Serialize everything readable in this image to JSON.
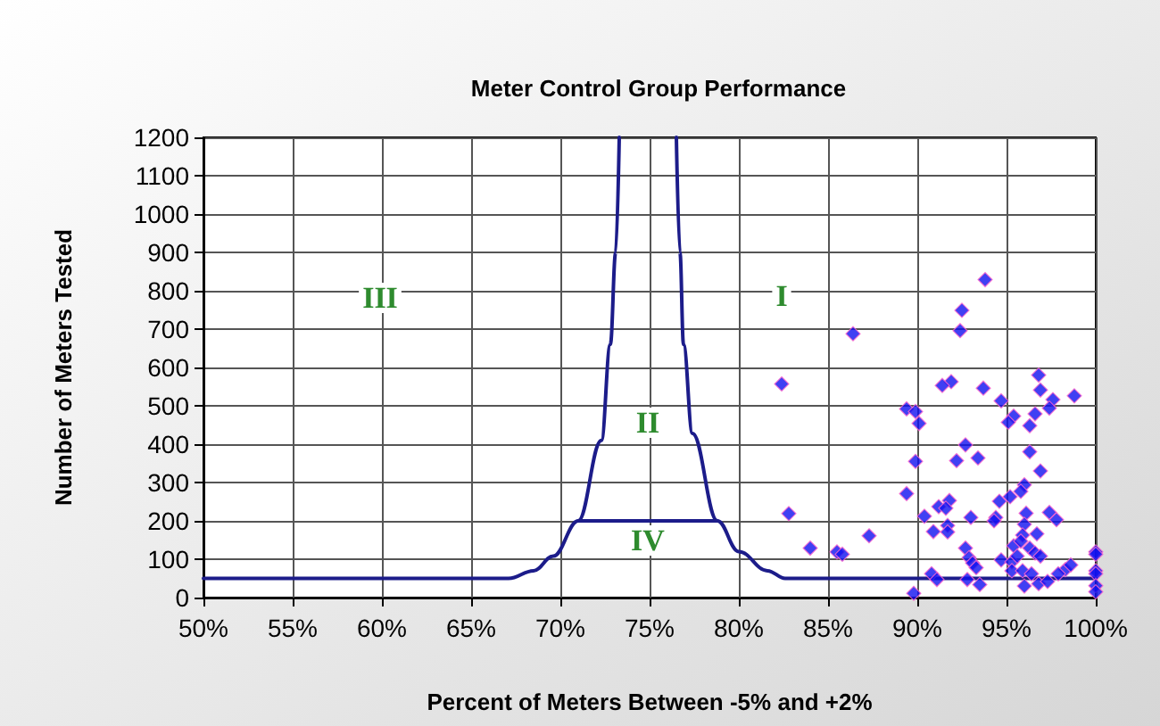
{
  "chart_data": {
    "type": "scatter",
    "title": "Meter Control Group Performance",
    "xlabel": "Percent of Meters Between -5% and +2%",
    "ylabel": "Number of Meters Tested",
    "xlim": [
      50,
      100
    ],
    "xticks": [
      {
        "value": 50,
        "label": "50%"
      },
      {
        "value": 55,
        "label": "55%"
      },
      {
        "value": 60,
        "label": "60%"
      },
      {
        "value": 65,
        "label": "65%"
      },
      {
        "value": 70,
        "label": "70%"
      },
      {
        "value": 75,
        "label": "75%"
      },
      {
        "value": 80,
        "label": "80%"
      },
      {
        "value": 85,
        "label": "85%"
      },
      {
        "value": 90,
        "label": "90%"
      },
      {
        "value": 95,
        "label": "95%"
      },
      {
        "value": 100,
        "label": "100%"
      }
    ],
    "ylim": [
      0,
      1200
    ],
    "yticks": [
      0,
      100,
      200,
      300,
      400,
      500,
      600,
      700,
      800,
      900,
      1000,
      1100,
      1200
    ],
    "grid": true,
    "annotations": [
      "I",
      "II",
      "III",
      "IV"
    ],
    "series": [
      {
        "type": "line",
        "color": "#1c1c8a",
        "marker": "none",
        "x": [
          50,
          67.1,
          68.5,
          69.6,
          71,
          72.3,
          72.8,
          73.1,
          73.3
        ],
        "values": [
          50,
          50,
          70,
          108,
          200,
          410,
          660,
          900,
          1200
        ]
      },
      {
        "type": "line",
        "color": "#1c1c8a",
        "marker": "none",
        "x": [
          76.5,
          76.7,
          76.9,
          77.4,
          78.8,
          80,
          81.6,
          82.6,
          100
        ],
        "values": [
          1200,
          900,
          660,
          428,
          200,
          120,
          70,
          50,
          50
        ]
      },
      {
        "type": "line",
        "color": "#1c1c8a",
        "marker": "none",
        "x": [
          71,
          78.8
        ],
        "values": [
          200,
          200
        ]
      },
      {
        "color": "#1010f0",
        "marker": "diamond",
        "x": [
          93.8,
          92.5,
          92.4,
          86.4,
          82.4,
          96.8,
          91.9,
          91.4,
          93.7,
          96.9,
          98.8,
          97.6,
          94.7,
          89.4,
          89.9,
          97.4,
          90.1,
          95.4,
          95.1,
          96.6,
          96.3,
          92.7,
          92.2,
          93.4,
          89.9,
          96.3,
          96.9,
          89.4,
          96,
          95.8,
          95.2,
          94.6,
          91.8,
          91.2,
          91.6,
          82.8,
          90.4,
          93,
          94.4,
          94.3,
          97.4,
          97.8,
          96.1,
          96,
          91.7,
          91.7,
          90.9,
          87.3,
          95.9,
          96.7,
          84,
          85.5,
          85.8,
          92.7,
          95.4,
          95.8,
          96.3,
          96.6,
          96.9,
          92.9,
          93.1,
          93.3,
          94.7,
          95.3,
          95.6,
          95.3,
          95.9,
          96.4,
          98.3,
          98.6,
          97.9,
          100,
          100,
          100,
          100,
          100,
          100,
          90.8,
          91.1,
          92.8,
          93.5,
          96,
          96.8,
          97.3,
          89.8
        ],
        "values": [
          829,
          749,
          696,
          688,
          557,
          580,
          563,
          553,
          546,
          541,
          526,
          516,
          513,
          492,
          485,
          494,
          454,
          473,
          457,
          479,
          448,
          398,
          357,
          364,
          355,
          380,
          330,
          271,
          294,
          277,
          263,
          251,
          253,
          237,
          233,
          219,
          212,
          209,
          209,
          200,
          222,
          203,
          220,
          191,
          188,
          171,
          172,
          161,
          163,
          166,
          129,
          119,
          113,
          129,
          135,
          147,
          129,
          116,
          108,
          104,
          90,
          78,
          98,
          93,
          108,
          70,
          70,
          62,
          73,
          85,
          62,
          119,
          113,
          70,
          62,
          31,
          15,
          62,
          47,
          47,
          34,
          30,
          36,
          42,
          11
        ]
      }
    ]
  }
}
